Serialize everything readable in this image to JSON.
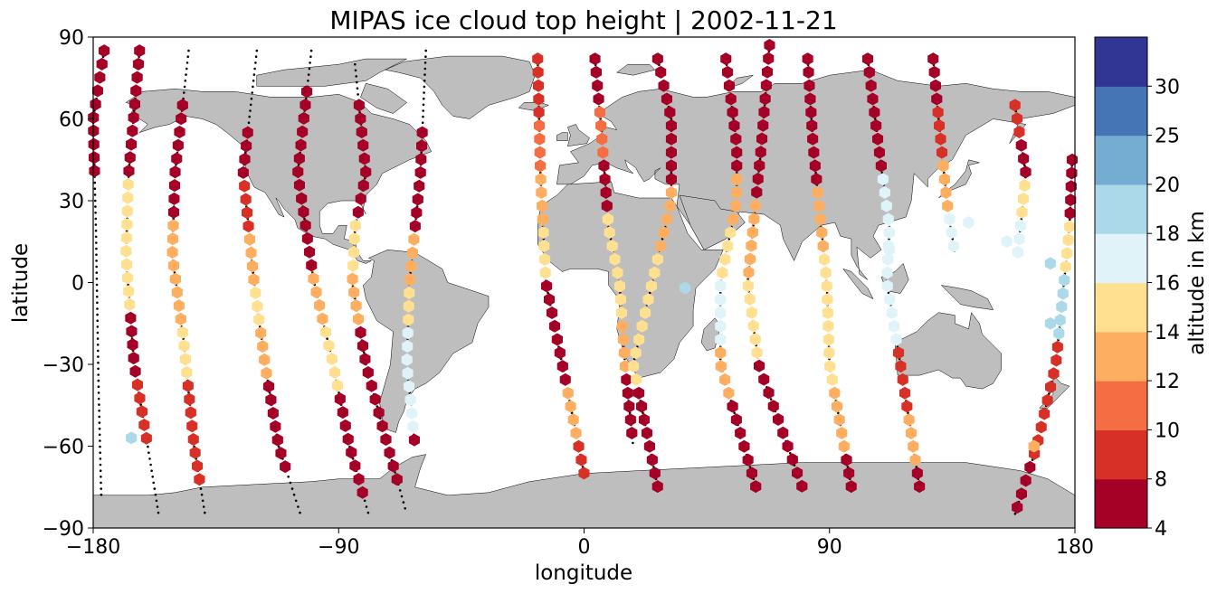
{
  "chart_data": {
    "type": "scatter",
    "title": "MIPAS ice cloud top height | 2002-11-21",
    "xlabel": "longitude",
    "ylabel": "latitude",
    "xlim": [
      -180,
      180
    ],
    "ylim": [
      -90,
      90
    ],
    "xticks": [
      -180,
      -90,
      0,
      90,
      180
    ],
    "yticks": [
      -90,
      -60,
      -30,
      0,
      30,
      60,
      90
    ],
    "xtick_labels": [
      "−180",
      "−90",
      "0",
      "90",
      "180"
    ],
    "ytick_labels": [
      "−90",
      "−60",
      "−30",
      "0",
      "30",
      "60",
      "90"
    ],
    "grid": false,
    "marker": "hexagon",
    "colorbar": {
      "label": "altitude in km",
      "bounds": [
        4,
        8,
        10,
        12,
        14,
        16,
        18,
        20,
        25,
        30
      ],
      "colors": [
        "#a50026",
        "#d73027",
        "#f46d43",
        "#fdae61",
        "#fee090",
        "#e0f3f8",
        "#abd9e9",
        "#74add1",
        "#4575b4",
        "#313695"
      ],
      "tick_labels": [
        "4",
        "8",
        "10",
        "12",
        "14",
        "16",
        "18",
        "20",
        "25",
        "30"
      ]
    },
    "map_colors": {
      "land": "#bebebe",
      "coast": "#000000",
      "ocean": "#ffffff"
    },
    "orbit_tracks": [
      {
        "pts": [
          [
            -176,
            85
          ],
          [
            -180,
            60
          ],
          [
            -179,
            20
          ],
          [
            -178,
            -40
          ],
          [
            -177,
            -80
          ]
        ],
        "cloud_from": 40,
        "cloud_to": 85,
        "alt": [
          6,
          6,
          6
        ]
      },
      {
        "pts": [
          [
            -163,
            85
          ],
          [
            -167,
            40
          ],
          [
            -168,
            10
          ],
          [
            -165,
            -30
          ],
          [
            -160,
            -60
          ],
          [
            -156,
            -85
          ]
        ],
        "cloud_from": -60,
        "cloud_to": 85,
        "alt": [
          6,
          7,
          15,
          15,
          7,
          9
        ]
      },
      {
        "pts": [
          [
            -145,
            85
          ],
          [
            -150,
            40
          ],
          [
            -151,
            10
          ],
          [
            -147,
            -20
          ],
          [
            -143,
            -60
          ],
          [
            -139,
            -85
          ]
        ],
        "cloud_from": -75,
        "cloud_to": 65,
        "alt": [
          6,
          7,
          13,
          13,
          14,
          9,
          8
        ]
      },
      {
        "pts": [
          [
            -120,
            85
          ],
          [
            -125,
            40
          ],
          [
            -121,
            0
          ],
          [
            -117,
            -30
          ],
          [
            -112,
            -60
          ],
          [
            -104,
            -85
          ]
        ],
        "cloud_from": -70,
        "cloud_to": 55,
        "alt": [
          6,
          9,
          12,
          15,
          13,
          6,
          6
        ]
      },
      {
        "pts": [
          [
            -100,
            85
          ],
          [
            -105,
            40
          ],
          [
            -99,
            0
          ],
          [
            -92,
            -30
          ],
          [
            -86,
            -60
          ],
          [
            -79,
            -85
          ]
        ],
        "cloud_from": -80,
        "cloud_to": 70,
        "alt": [
          6,
          6,
          6,
          13,
          14,
          6,
          6
        ]
      },
      {
        "pts": [
          [
            -84,
            80
          ],
          [
            -80,
            40
          ],
          [
            -84,
            20
          ],
          [
            -85,
            0
          ],
          [
            -80,
            -30
          ],
          [
            -72,
            -60
          ],
          [
            -65,
            -85
          ]
        ],
        "cloud_from": -75,
        "cloud_to": 65,
        "alt": [
          6,
          7,
          14,
          13,
          7,
          6,
          6
        ]
      },
      {
        "pts": [
          [
            -58,
            85
          ],
          [
            -60,
            40
          ],
          [
            -64,
            0
          ],
          [
            -65,
            -30
          ],
          [
            -62,
            -60
          ]
        ],
        "cloud_from": -70,
        "cloud_to": 55,
        "alt": [
          6,
          7,
          13,
          14,
          17,
          17,
          6
        ]
      },
      {
        "pts": [
          [
            -17,
            82
          ],
          [
            -16,
            40
          ],
          [
            -14,
            0
          ],
          [
            -8,
            -30
          ],
          [
            0,
            -70
          ]
        ],
        "cloud_from": -75,
        "cloud_to": 82,
        "alt": [
          9,
          11,
          13,
          14,
          7,
          6,
          12,
          8
        ]
      },
      {
        "pts": [
          [
            4,
            82
          ],
          [
            6,
            60
          ],
          [
            9,
            20
          ],
          [
            13,
            0
          ],
          [
            15,
            -30
          ],
          [
            18,
            -60
          ]
        ],
        "cloud_from": -65,
        "cloud_to": 82,
        "alt": [
          7,
          11,
          6,
          14,
          15,
          13,
          6,
          6
        ]
      },
      {
        "pts": [
          [
            27,
            82
          ],
          [
            32,
            60
          ],
          [
            32,
            30
          ],
          [
            25,
            0
          ],
          [
            18,
            -30
          ],
          [
            27,
            -75
          ]
        ],
        "cloud_from": -85,
        "cloud_to": 82,
        "alt": [
          7,
          6,
          12,
          14,
          15,
          6,
          6
        ]
      },
      {
        "pts": [
          [
            52,
            82
          ],
          [
            56,
            50
          ],
          [
            56,
            30
          ],
          [
            50,
            0
          ],
          [
            50,
            -30
          ],
          [
            63,
            -75
          ]
        ],
        "cloud_from": -80,
        "cloud_to": 82,
        "alt": [
          6,
          6,
          13,
          15,
          16,
          13,
          6,
          6
        ]
      },
      {
        "pts": [
          [
            68,
            87
          ],
          [
            65,
            50
          ],
          [
            62,
            20
          ],
          [
            60,
            0
          ],
          [
            64,
            -30
          ],
          [
            80,
            -75
          ]
        ],
        "cloud_from": -80,
        "cloud_to": 87,
        "alt": [
          6,
          6,
          13,
          14,
          6,
          6
        ]
      },
      {
        "pts": [
          [
            82,
            82
          ],
          [
            84,
            50
          ],
          [
            87,
            20
          ],
          [
            89,
            0
          ],
          [
            90,
            -30
          ],
          [
            98,
            -75
          ]
        ],
        "cloud_from": -85,
        "cloud_to": 82,
        "alt": [
          6,
          6,
          13,
          15,
          14,
          13,
          6
        ]
      },
      {
        "pts": [
          [
            104,
            82
          ],
          [
            108,
            50
          ],
          [
            112,
            20
          ],
          [
            111,
            0
          ],
          [
            116,
            -30
          ],
          [
            123,
            -75
          ]
        ],
        "cloud_from": -85,
        "cloud_to": 82,
        "alt": [
          7,
          6,
          16,
          17,
          17,
          8,
          12,
          6
        ]
      },
      {
        "pts": [
          [
            128,
            82
          ],
          [
            130,
            60
          ],
          [
            133,
            30
          ],
          [
            136,
            10
          ]
        ],
        "cloud_from": 10,
        "cloud_to": 82,
        "alt": [
          7,
          8,
          13,
          16
        ]
      },
      {
        "pts": [
          [
            158,
            65
          ],
          [
            162,
            40
          ],
          [
            159,
            10
          ]
        ],
        "cloud_from": 10,
        "cloud_to": 65,
        "alt": [
          8,
          6,
          14,
          16
        ]
      },
      {
        "pts": [
          [
            179,
            45
          ],
          [
            178,
            20
          ],
          [
            176,
            0
          ],
          [
            173,
            -30
          ],
          [
            166,
            -60
          ],
          [
            158,
            -85
          ]
        ],
        "cloud_from": -85,
        "cloud_to": 45,
        "alt": [
          7,
          14,
          18,
          8,
          9,
          7
        ]
      }
    ],
    "points": [
      {
        "x": -166,
        "y": -57,
        "alt": 19
      },
      {
        "x": 37,
        "y": -2,
        "alt": 19
      },
      {
        "x": 165,
        "y": -60,
        "alt": 12
      },
      {
        "x": 171,
        "y": 7,
        "alt": 19
      },
      {
        "x": 171,
        "y": -15,
        "alt": 19
      },
      {
        "x": 112,
        "y": 12,
        "alt": 17
      },
      {
        "x": 141,
        "y": 22,
        "alt": 17
      },
      {
        "x": 155,
        "y": 15,
        "alt": 17
      }
    ]
  }
}
